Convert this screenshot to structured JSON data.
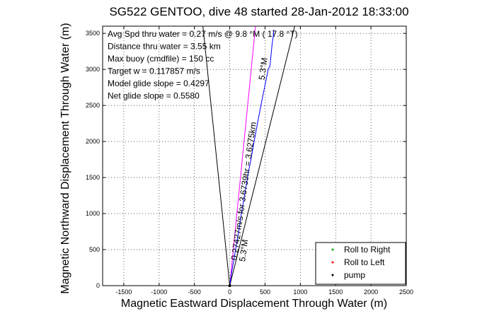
{
  "chart_data": {
    "type": "line",
    "title": "SG522 GENTOO, dive 48 started 28-Jan-2012 18:33:00",
    "xlabel": "Magnetic Eastward Displacement Through Water (m)",
    "ylabel": "Magnetic Northward Displacement Through Water (m)",
    "xlim": [
      -1800,
      2500
    ],
    "ylim": [
      0,
      3600
    ],
    "grid": true,
    "xticks": [
      -1500,
      -1000,
      -500,
      0,
      500,
      1000,
      1500,
      2000,
      2500
    ],
    "yticks": [
      0,
      500,
      1000,
      1500,
      2000,
      2500,
      3000,
      3500
    ],
    "info_lines": [
      "Avg Spd thru water =  0.27 m/s @   9.8  °M ( 17.8 °T)",
      "Distance thru water =  3.55 km",
      "Max buoy (cmdfile) = 150 cc",
      "Target w = 0.117857 m/s",
      "Model glide slope = 0.4297",
      "Net glide slope = 0.5580"
    ],
    "annotations": [
      {
        "text": "0.27427m/s for 3.6739hr = 3.6275km",
        "x": 100,
        "y": 350,
        "rotation_deg": -82
      },
      {
        "text": "5.3°M",
        "x": 215,
        "y": 330,
        "rotation_deg": -82
      },
      {
        "text": "5.3°M",
        "x": 490,
        "y": 2850,
        "rotation_deg": -82
      }
    ],
    "reference_lines": [
      {
        "name": "envelope-left",
        "color": "#000000",
        "points": [
          [
            0,
            0
          ],
          [
            -380,
            3600
          ]
        ]
      },
      {
        "name": "envelope-right",
        "color": "#000000",
        "points": [
          [
            0,
            0
          ],
          [
            920,
            3600
          ]
        ]
      },
      {
        "name": "course-line",
        "color": "#ff00ff",
        "points": [
          [
            0,
            0
          ],
          [
            365,
            3600
          ]
        ]
      }
    ],
    "series": [
      {
        "name": "track",
        "color": "#0000ff",
        "x": [
          0,
          30,
          65,
          100,
          135,
          165,
          200,
          235,
          265,
          295,
          320,
          345,
          370,
          395,
          420,
          445,
          470,
          495,
          520,
          545,
          570,
          585,
          600,
          615,
          625
        ],
        "y": [
          0,
          200,
          400,
          600,
          800,
          1000,
          1200,
          1400,
          1580,
          1720,
          1860,
          2000,
          2130,
          2260,
          2390,
          2520,
          2640,
          2760,
          2880,
          3000,
          3050,
          3200,
          3350,
          3450,
          3550
        ]
      }
    ],
    "legend": {
      "position": "bottom-right",
      "entries": [
        {
          "label": "Roll to Right",
          "color": "#00aa00",
          "marker": "dot"
        },
        {
          "label": "Roll to Left",
          "color": "#ff0000",
          "marker": "dot"
        },
        {
          "label": "pump",
          "color": "#000000",
          "marker": "dot"
        }
      ]
    }
  }
}
